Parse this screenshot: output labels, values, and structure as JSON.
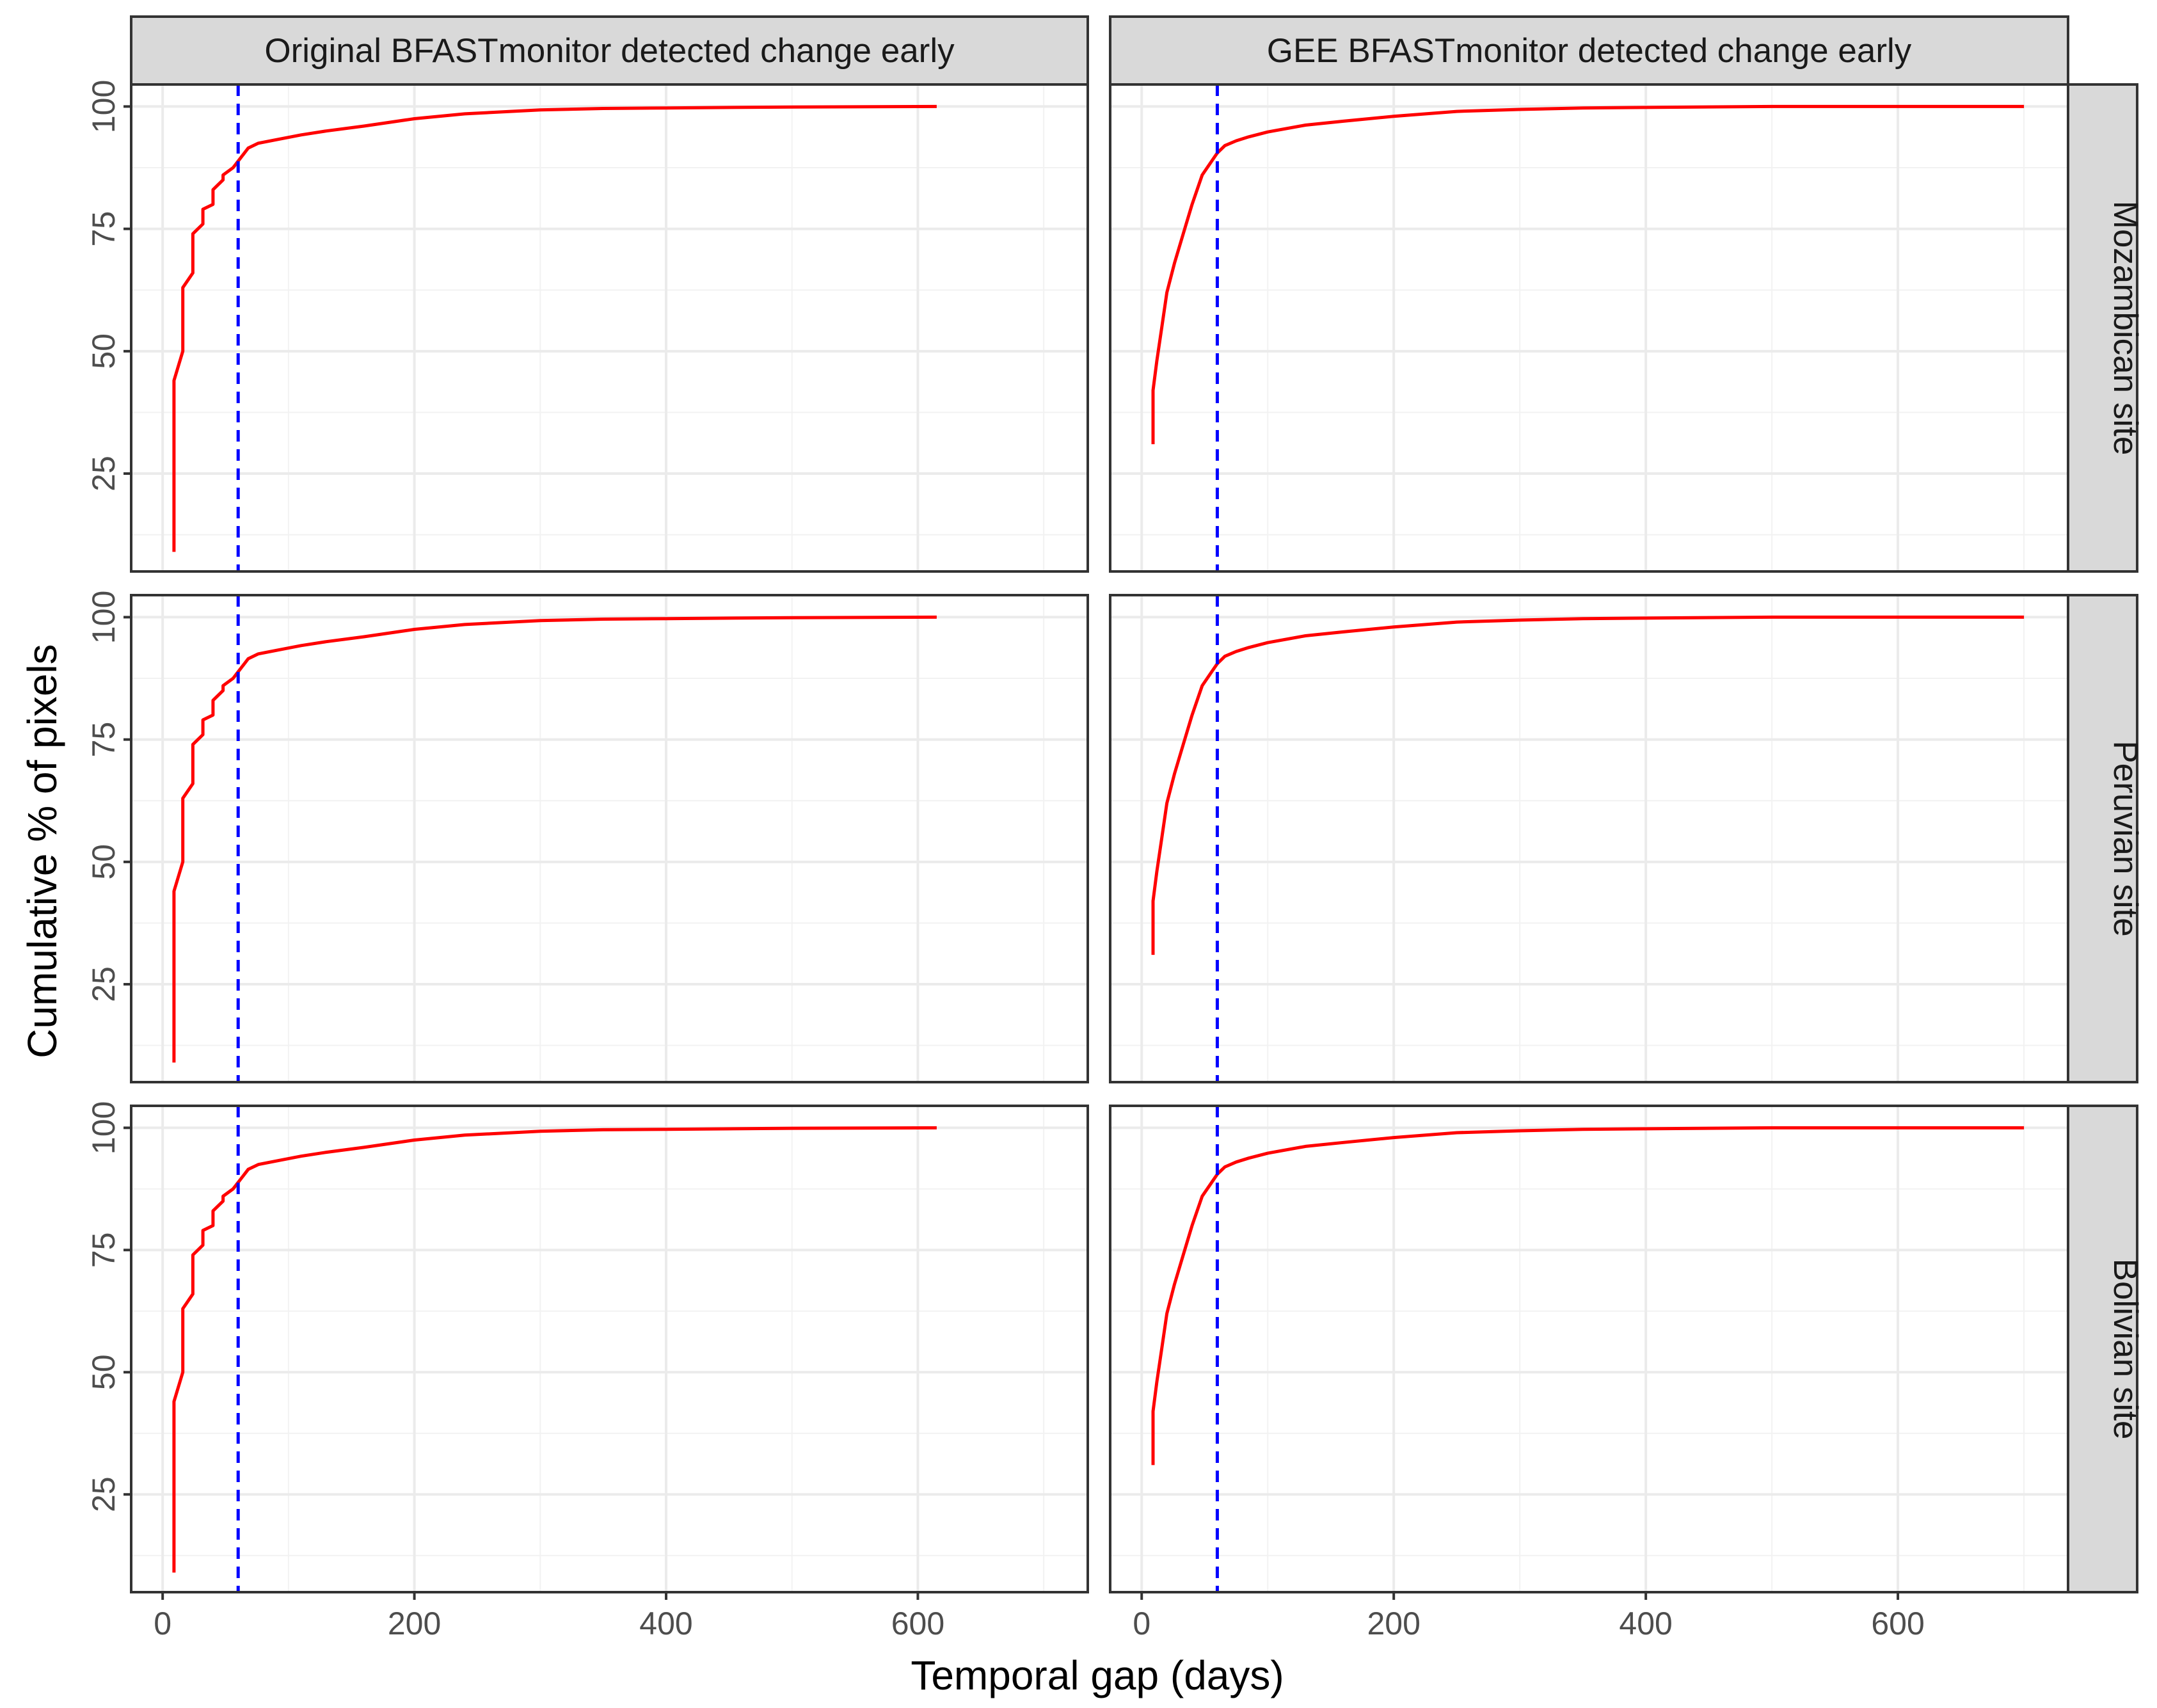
{
  "chart_data": {
    "type": "line",
    "title": "",
    "xlabel": "Temporal gap (days)",
    "ylabel": "Cumulative % of pixels",
    "column_labels": [
      "Original BFASTmonitor detected change early",
      "GEE BFASTmonitor detected change early"
    ],
    "row_labels": [
      "Mozambican site",
      "Peruvian site",
      "Bolivian site"
    ],
    "xlim": [
      -25,
      735
    ],
    "ylim": [
      5,
      104.5
    ],
    "x_ticks": [
      0,
      200,
      400,
      600
    ],
    "y_ticks": [
      25,
      50,
      75,
      100
    ],
    "grid": true,
    "reference_line": {
      "x": 60,
      "color": "#0000ff",
      "style": "dashed"
    },
    "series_color": "#ff0000",
    "panels": [
      {
        "column": 0,
        "row": 0,
        "x": [
          9,
          9,
          16,
          16,
          24,
          24,
          32,
          32,
          40,
          40,
          48,
          48,
          56,
          62,
          68,
          76,
          90,
          110,
          130,
          160,
          200,
          240,
          300,
          350,
          400,
          500,
          615
        ],
        "y": [
          9,
          44,
          50,
          63,
          66,
          74,
          76,
          79,
          80,
          83,
          85,
          86,
          87.5,
          89.5,
          91.5,
          92.5,
          93.2,
          94.2,
          95,
          96,
          97.5,
          98.5,
          99.3,
          99.6,
          99.7,
          99.9,
          100
        ]
      },
      {
        "column": 1,
        "row": 0,
        "x": [
          9,
          9,
          12,
          16,
          20,
          26,
          33,
          40,
          48,
          56,
          60,
          66,
          75,
          85,
          100,
          130,
          160,
          200,
          250,
          300,
          350,
          400,
          500,
          700
        ],
        "y": [
          31,
          42,
          48,
          55,
          62,
          68,
          74,
          80,
          86,
          89,
          90.5,
          92,
          93,
          93.8,
          94.8,
          96.2,
          97,
          98,
          99,
          99.4,
          99.7,
          99.8,
          100,
          100
        ]
      },
      {
        "column": 0,
        "row": 1,
        "x": [
          9,
          9,
          16,
          16,
          24,
          24,
          32,
          32,
          40,
          40,
          48,
          48,
          56,
          62,
          68,
          76,
          90,
          110,
          130,
          160,
          200,
          240,
          300,
          350,
          400,
          500,
          615
        ],
        "y": [
          9,
          44,
          50,
          63,
          66,
          74,
          76,
          79,
          80,
          83,
          85,
          86,
          87.5,
          89.5,
          91.5,
          92.5,
          93.2,
          94.2,
          95,
          96,
          97.5,
          98.5,
          99.3,
          99.6,
          99.7,
          99.9,
          100
        ]
      },
      {
        "column": 1,
        "row": 1,
        "x": [
          9,
          9,
          12,
          16,
          20,
          26,
          33,
          40,
          48,
          56,
          60,
          66,
          75,
          85,
          100,
          130,
          160,
          200,
          250,
          300,
          350,
          400,
          500,
          700
        ],
        "y": [
          31,
          42,
          48,
          55,
          62,
          68,
          74,
          80,
          86,
          89,
          90.5,
          92,
          93,
          93.8,
          94.8,
          96.2,
          97,
          98,
          99,
          99.4,
          99.7,
          99.8,
          100,
          100
        ]
      },
      {
        "column": 0,
        "row": 2,
        "x": [
          9,
          9,
          16,
          16,
          24,
          24,
          32,
          32,
          40,
          40,
          48,
          48,
          56,
          62,
          68,
          76,
          90,
          110,
          130,
          160,
          200,
          240,
          300,
          350,
          400,
          500,
          615
        ],
        "y": [
          9,
          44,
          50,
          63,
          66,
          74,
          76,
          79,
          80,
          83,
          85,
          86,
          87.5,
          89.5,
          91.5,
          92.5,
          93.2,
          94.2,
          95,
          96,
          97.5,
          98.5,
          99.3,
          99.6,
          99.7,
          99.9,
          100
        ]
      },
      {
        "column": 1,
        "row": 2,
        "x": [
          9,
          9,
          12,
          16,
          20,
          26,
          33,
          40,
          48,
          56,
          60,
          66,
          75,
          85,
          100,
          130,
          160,
          200,
          250,
          300,
          350,
          400,
          500,
          700
        ],
        "y": [
          31,
          42,
          48,
          55,
          62,
          68,
          74,
          80,
          86,
          89,
          90.5,
          92,
          93,
          93.8,
          94.8,
          96.2,
          97,
          98,
          99,
          99.4,
          99.7,
          99.8,
          100,
          100
        ]
      }
    ]
  }
}
